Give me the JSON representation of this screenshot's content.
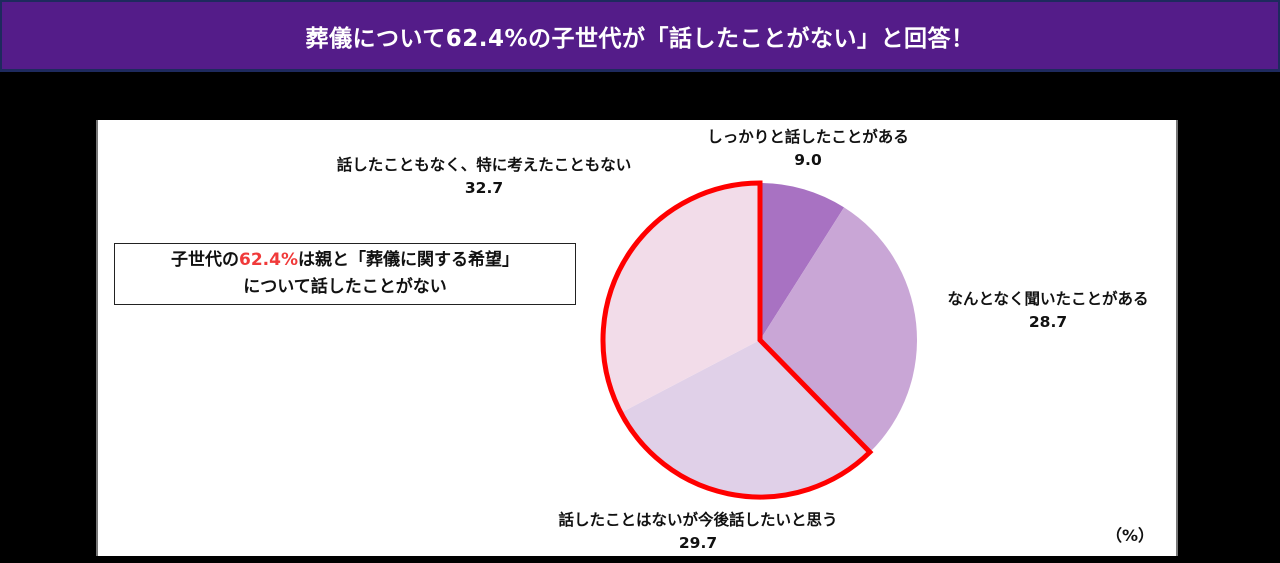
{
  "header": {
    "title": "葬儀について62.4%の子世代が「話したことがない」と回答！",
    "bg_color": "#541c89"
  },
  "callout": {
    "line1_prefix": "子世代の",
    "line1_highlight": "62.4%",
    "line1_suffix": "は親と「葬儀に関する希望」",
    "line2": "について話したことがない",
    "highlight_color": "#f03a3a"
  },
  "unit_label": "（%）",
  "chart_data": {
    "type": "pie",
    "title": "",
    "unit": "%",
    "start_angle_deg": 0,
    "direction": "clockwise",
    "slices": [
      {
        "label": "しっかりと話したことがある",
        "value": 9.0,
        "color": "#a872c2"
      },
      {
        "label": "なんとなく聞いたことがある",
        "value": 28.7,
        "color": "#c9a6d6"
      },
      {
        "label": "話したことはないが今後話したいと思う",
        "value": 29.7,
        "color": "#e0d0e8"
      },
      {
        "label": "話したこともなく、特に考えたこともない",
        "value": 32.7,
        "color": "#f2dce9"
      }
    ],
    "highlight": {
      "slices": [
        "話したことはないが今後話したいと思う",
        "話したこともなく、特に考えたこともない"
      ],
      "total": 62.4,
      "outline_color": "#ff0000"
    }
  },
  "labels": {
    "s0": {
      "name": "しっかりと話したことがある",
      "val": "9.0"
    },
    "s1": {
      "name": "なんとなく聞いたことがある",
      "val": "28.7"
    },
    "s2": {
      "name": "話したことはないが今後話したいと思う",
      "val": "29.7"
    },
    "s3": {
      "name": "話したこともなく、特に考えたこともない",
      "val": "32.7"
    }
  }
}
